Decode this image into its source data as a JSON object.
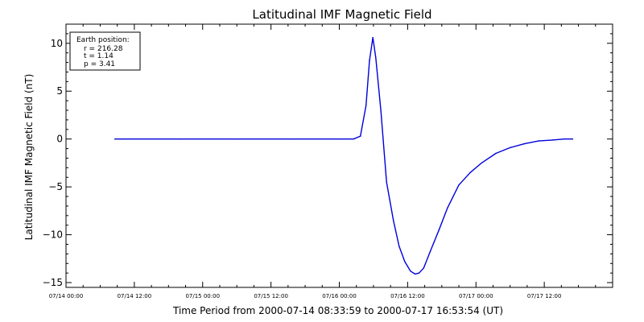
{
  "chart_data": {
    "type": "line",
    "title": "Latitudinal IMF Magnetic Field",
    "xlabel": "Time Period from 2000-07-14 08:33:59 to 2000-07-17 16:53:54 (UT)",
    "ylabel": "Latitudinal IMF Magnetic Field (nT)",
    "x_unit": "hours since 2000-07-14 00:00 UT",
    "xlim": [
      0,
      96
    ],
    "ylim": [
      -15.5,
      12
    ],
    "yticks": [
      10,
      5,
      0,
      -5,
      -10,
      -15
    ],
    "ytick_labels": [
      "10",
      "5",
      "0",
      "−5",
      "−10",
      "−15"
    ],
    "xticks": [
      0,
      12,
      24,
      36,
      48,
      60,
      72,
      84
    ],
    "xtick_labels": [
      "07/14 00:00",
      "07/14 12:00",
      "07/15 00:00",
      "07/15 12:00",
      "07/16 00:00",
      "07/16 12:00",
      "07/17 00:00",
      "07/17 12:00"
    ],
    "grid": false,
    "series": [
      {
        "color": "#0000dd",
        "x": [
          8.57,
          10,
          20,
          30,
          40,
          48,
          50.5,
          51.7,
          52.7,
          53.3,
          53.9,
          54.4,
          55.3,
          56.3,
          57.5,
          58.5,
          59.5,
          60.5,
          61.3,
          62,
          62.8,
          64,
          65.5,
          67,
          69,
          71,
          73,
          75.5,
          78,
          80.5,
          83,
          85.5,
          87.5,
          89
        ],
        "y": [
          0,
          0,
          0,
          0,
          0,
          0,
          0,
          0.3,
          3.5,
          8.2,
          10.6,
          8.5,
          3.0,
          -4.5,
          -8.5,
          -11.2,
          -12.8,
          -13.8,
          -14.1,
          -14.0,
          -13.5,
          -11.7,
          -9.5,
          -7.2,
          -4.8,
          -3.5,
          -2.5,
          -1.5,
          -0.9,
          -0.5,
          -0.2,
          -0.1,
          0,
          0
        ]
      }
    ]
  },
  "info_box": {
    "heading": "Earth position:",
    "r": "r = 216.28",
    "t": "t = 1.14",
    "p": "p = 3.41"
  }
}
